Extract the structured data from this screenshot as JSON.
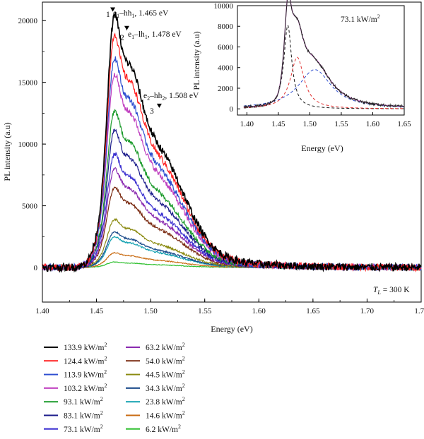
{
  "chart_data": [
    {
      "type": "line",
      "xlabel": "Energy (eV)",
      "ylabel": "PL intensity (a.u)",
      "xlim": [
        1.4,
        1.75
      ],
      "ylim": [
        -2800,
        21500
      ],
      "xticks": [
        "1.40",
        "1.45",
        "1.50",
        "1.55",
        "1.60",
        "1.65",
        "1.70",
        "1.75"
      ],
      "xtick_values": [
        1.4,
        1.45,
        1.5,
        1.55,
        1.6,
        1.65,
        1.7,
        1.75
      ],
      "yticks": [
        "0",
        "5000",
        "10000",
        "15000",
        "20000"
      ],
      "ytick_values": [
        0,
        5000,
        10000,
        15000,
        20000
      ],
      "grid": false,
      "legend_position": "below",
      "temperature_label": "T",
      "temperature_sub": "L",
      "temperature_value": " = 300 K",
      "series": [
        {
          "name": "133.9 kW/m",
          "color": "#000000",
          "peak": 20500
        },
        {
          "name": "124.4 kW/m",
          "color": "#ff2020",
          "peak": 18900
        },
        {
          "name": "113.9 kW/m",
          "color": "#2f4fd0",
          "peak": 17000
        },
        {
          "name": "103.2 kW/m",
          "color": "#c040c0",
          "peak": 15700
        },
        {
          "name": "93.1 kW/m",
          "color": "#1a9a2a",
          "peak": 12700
        },
        {
          "name": "83.1 kW/m",
          "color": "#1a1a8a",
          "peak": 11100
        },
        {
          "name": "73.1 kW/m",
          "color": "#3a2fd0",
          "peak": 9200
        },
        {
          "name": "63.2 kW/m",
          "color": "#8a2ab0",
          "peak": 8000
        },
        {
          "name": "54.0 kW/m",
          "color": "#7a2a10",
          "peak": 6500
        },
        {
          "name": "44.5 kW/m",
          "color": "#8a8a10",
          "peak": 3900
        },
        {
          "name": "34.3 kW/m",
          "color": "#1a4a8a",
          "peak": 2900
        },
        {
          "name": "23.8 kW/m",
          "color": "#10a0b0",
          "peak": 2500
        },
        {
          "name": "14.6 kW/m",
          "color": "#c86a10",
          "peak": 1200
        },
        {
          "name": "6.2 kW/m",
          "color": "#30c030",
          "peak": 450
        }
      ],
      "peak_labels": [
        {
          "num": "1",
          "text_main": "e",
          "sub1": "1",
          "text_mid": "–hh",
          "sub2": "1",
          "text_tail": ", 1.465 eV",
          "x": 1.465,
          "y": 20500
        },
        {
          "num": "2",
          "text_main": "e",
          "sub1": "1",
          "text_mid": "–lh",
          "sub2": "1",
          "text_tail": ", 1.478 eV",
          "x": 1.478,
          "y": 19000
        },
        {
          "num": "3",
          "text_main": "e",
          "sub1": "2",
          "text_mid": "–hh",
          "sub2": "2",
          "text_tail": ", 1.508 eV",
          "x": 1.508,
          "y": 12700
        }
      ]
    },
    {
      "type": "line",
      "title": "73.1 kW/m",
      "xlabel": "Energy (eV)",
      "ylabel": "PL intensity (a.u)",
      "xlim": [
        1.385,
        1.65
      ],
      "ylim": [
        -600,
        10000
      ],
      "xticks": [
        "1.40",
        "1.45",
        "1.50",
        "1.55",
        "1.60",
        "1.65"
      ],
      "xtick_values": [
        1.4,
        1.45,
        1.5,
        1.55,
        1.6,
        1.65
      ],
      "yticks": [
        "0",
        "2000",
        "4000",
        "6000",
        "8000",
        "10000"
      ],
      "ytick_values": [
        0,
        2000,
        4000,
        6000,
        8000,
        10000
      ],
      "components": [
        {
          "center": 1.465,
          "amplitude": 8100,
          "width": 0.0075,
          "color": "#1a1a1a"
        },
        {
          "center": 1.48,
          "amplitude": 5000,
          "width": 0.013,
          "color": "#e03030"
        },
        {
          "center": 1.508,
          "amplitude": 3800,
          "width": 0.032,
          "color": "#3050d0"
        }
      ]
    }
  ],
  "legend_unit_sup": "2"
}
